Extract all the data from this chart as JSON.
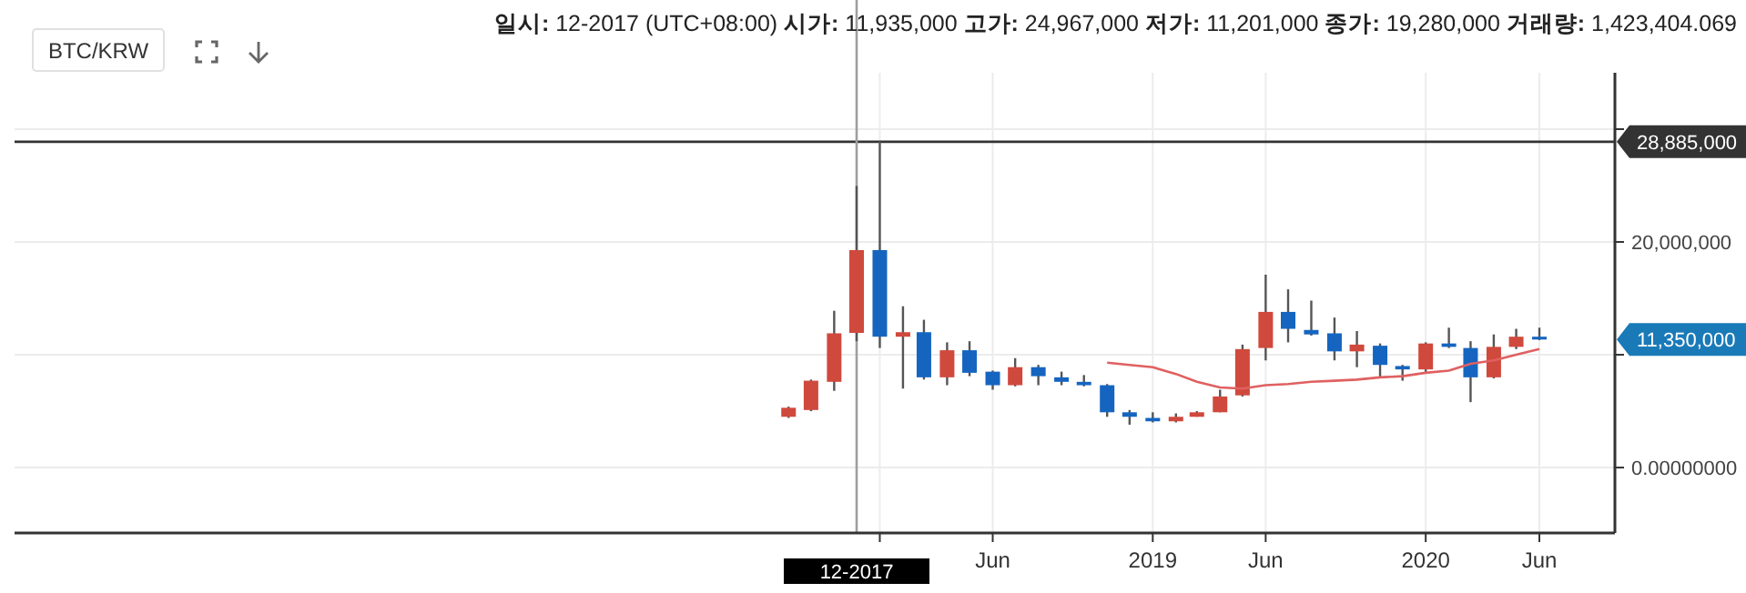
{
  "chart_data": {
    "type": "candlestick",
    "title": "BTC/KRW",
    "annotations": [
      "11,350,000",
      "일시: 12-2017 (UTC+08:00) 시가: 11,935,000 고가: 24,967,000 저가: 11,201,000 종가: 19,280,000 거래량: 1,423,404.069"
    ],
    "series": [
      {
        "x": [
          "2017-09",
          "2017-10",
          "2017-11",
          "2017-12",
          "2018-01",
          "2018-02",
          "2018-03",
          "2018-04",
          "2018-05",
          "2018-06",
          "2018-07",
          "2018-08",
          "2018-09",
          "2018-10",
          "2018-11",
          "2018-12",
          "2019-01",
          "2019-02",
          "2019-03",
          "2019-04",
          "2019-05",
          "2019-06",
          "2019-07",
          "2019-08",
          "2019-09",
          "2019-10",
          "2019-11",
          "2019-12",
          "2020-01",
          "2020-02",
          "2020-03",
          "2020-04",
          "2020-05",
          "2020-06"
        ],
        "ohlc": [
          [
            4500000,
            5400000,
            4400000,
            5300000
          ],
          [
            5100000,
            7800000,
            5000000,
            7700000
          ],
          [
            7600000,
            13900000,
            6800000,
            11900000
          ],
          [
            11935000,
            24967000,
            11201000,
            19280000
          ],
          [
            19280000,
            28900000,
            10600000,
            11600000
          ],
          [
            11600000,
            14300000,
            7000000,
            12000000
          ],
          [
            12000000,
            13100000,
            7800000,
            8000000
          ],
          [
            8000000,
            11100000,
            7300000,
            10400000
          ],
          [
            10400000,
            11200000,
            8100000,
            8400000
          ],
          [
            8500000,
            8600000,
            6900000,
            7300000
          ],
          [
            7300000,
            9700000,
            7200000,
            8900000
          ],
          [
            8900000,
            9100000,
            7300000,
            8100000
          ],
          [
            8000000,
            8500000,
            7300000,
            7600000
          ],
          [
            7600000,
            8200000,
            7200000,
            7300000
          ],
          [
            7300000,
            7400000,
            4500000,
            4900000
          ],
          [
            4900000,
            5100000,
            3800000,
            4500000
          ],
          [
            4400000,
            4900000,
            4000000,
            4100000
          ],
          [
            4100000,
            4800000,
            4000000,
            4500000
          ],
          [
            4500000,
            5000000,
            4500000,
            4900000
          ],
          [
            4900000,
            6900000,
            4900000,
            6300000
          ],
          [
            6400000,
            10900000,
            6300000,
            10500000
          ],
          [
            10600000,
            17100000,
            9500000,
            13800000
          ],
          [
            13800000,
            15800000,
            11100000,
            12300000
          ],
          [
            12200000,
            14800000,
            11700000,
            11800000
          ],
          [
            11900000,
            13300000,
            9500000,
            10300000
          ],
          [
            10300000,
            12100000,
            8900000,
            10900000
          ],
          [
            10800000,
            11000000,
            8000000,
            9100000
          ],
          [
            9000000,
            9100000,
            7700000,
            8700000
          ],
          [
            8700000,
            11100000,
            8400000,
            11000000
          ],
          [
            11000000,
            12400000,
            10600000,
            10700000
          ],
          [
            10600000,
            11200000,
            5800000,
            8000000
          ],
          [
            8000000,
            11800000,
            7900000,
            10700000
          ],
          [
            10700000,
            12300000,
            10500000,
            11600000
          ],
          [
            11600000,
            12400000,
            11300000,
            11350000
          ]
        ],
        "colors": [
          "#d0493d",
          "#d0493d",
          "#d0493d",
          "#d0493d",
          "#1565c0",
          "#d0493d",
          "#1565c0",
          "#d0493d",
          "#1565c0",
          "#1565c0",
          "#d0493d",
          "#1565c0",
          "#1565c0",
          "#1565c0",
          "#1565c0",
          "#1565c0",
          "#1565c0",
          "#d0493d",
          "#d0493d",
          "#d0493d",
          "#d0493d",
          "#d0493d",
          "#1565c0",
          "#1565c0",
          "#1565c0",
          "#d0493d",
          "#1565c0",
          "#1565c0",
          "#d0493d",
          "#1565c0",
          "#1565c0",
          "#d0493d",
          "#d0493d",
          "#1565c0"
        ]
      },
      {
        "type": "line",
        "color": "#e06060",
        "x": [
          "2018-11",
          "2018-12",
          "2019-01",
          "2019-02",
          "2019-03",
          "2019-04",
          "2019-05",
          "2019-06",
          "2019-07",
          "2019-08",
          "2019-09",
          "2019-10",
          "2019-11",
          "2019-12",
          "2020-01",
          "2020-02",
          "2020-03",
          "2020-04",
          "2020-05",
          "2020-06"
        ],
        "values": [
          9300000,
          9100000,
          8900000,
          8300000,
          7600000,
          7100000,
          7000000,
          7300000,
          7400000,
          7600000,
          7700000,
          7800000,
          8000000,
          8100000,
          8400000,
          8600000,
          9200000,
          9500000,
          10000000,
          10500000
        ]
      }
    ],
    "xlim": [
      "2014-11-01",
      "2020-09-10"
    ],
    "xticks": [
      {
        "value": "2018-01",
        "label": null
      },
      {
        "value": "2018-06",
        "label": "Jun"
      },
      {
        "value": "2019-01",
        "label": "2019"
      },
      {
        "value": "2019-06",
        "label": "Jun"
      },
      {
        "value": "2020-01",
        "label": "2020"
      },
      {
        "value": "2020-06",
        "label": "Jun"
      }
    ],
    "ylim": [
      -5800000,
      35000000
    ],
    "yticks": [
      {
        "value": 0,
        "label": "0.00000000"
      },
      {
        "value": 10000000,
        "label": null
      },
      {
        "value": 20000000,
        "label": "20,000,000"
      },
      {
        "value": 30000000,
        "label": null
      }
    ],
    "grid": true,
    "ref_lines": [
      {
        "axis": "y",
        "value": 28885000,
        "label": "28,885,000",
        "color": "#333333",
        "line_style": "solid"
      },
      {
        "axis": "x",
        "value": "2017-12",
        "label": "12-2017",
        "color": "#9e9e9e",
        "line_style": "solid"
      }
    ]
  }
}
